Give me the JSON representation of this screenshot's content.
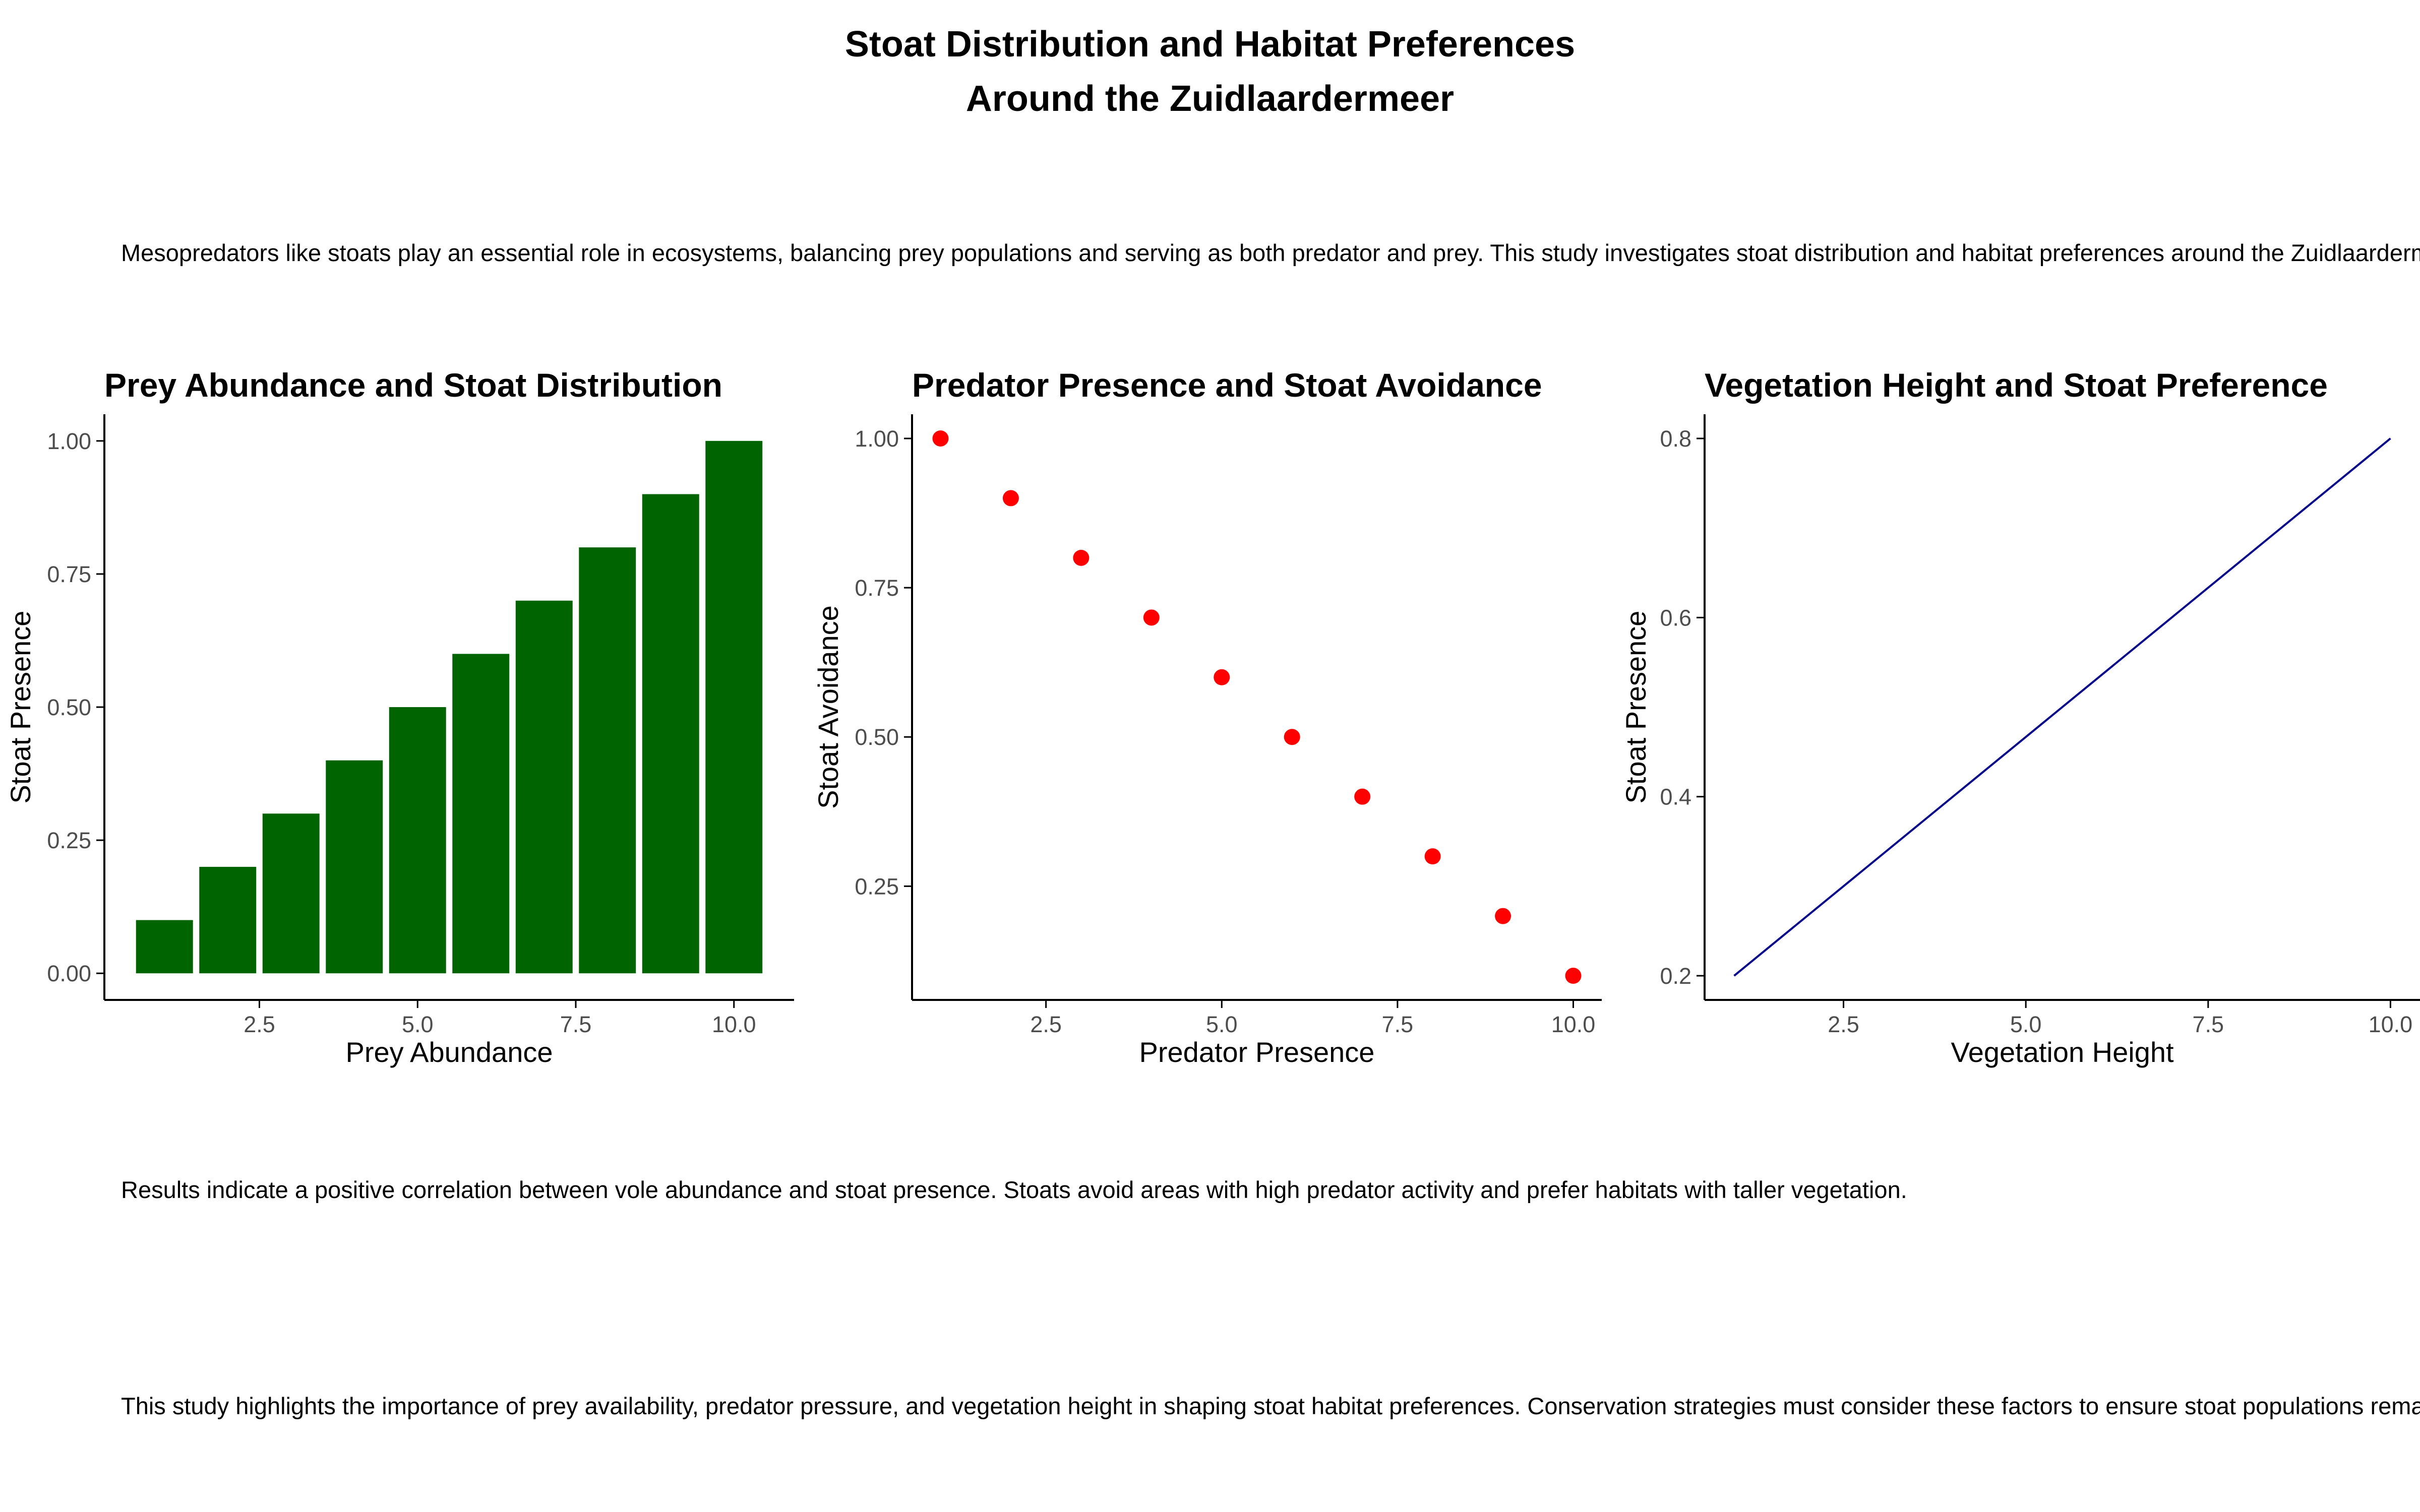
{
  "page": {
    "title_line1": "Stoat Distribution and Habitat Preferences",
    "title_line2": "Around the Zuidlaardermeer",
    "intro": "Mesopredators like stoats play an essential role in ecosystems, balancing prey populations and serving as both predator and prey. This study investigates stoat distribution and habitat preferences around the Zuidlaardermeer.",
    "results": "Results indicate a positive correlation between vole abundance and stoat presence. Stoats avoid areas with high predator activity and prefer habitats with taller vegetation.",
    "conclusion": "This study highlights the importance of prey availability, predator pressure, and vegetation height in shaping stoat habitat preferences. Conservation strategies must consider these factors to ensure stoat populations remain healthy."
  },
  "colors": {
    "bar": "#006400",
    "point": "#ff0000",
    "line": "#00008b",
    "axis": "#000000",
    "tick_label": "#4d4d4d"
  },
  "chart_data": [
    {
      "type": "bar",
      "title": "Prey Abundance and Stoat Distribution",
      "xlabel": "Prey Abundance",
      "ylabel": "Stoat Presence",
      "x": [
        1,
        2,
        3,
        4,
        5,
        6,
        7,
        8,
        9,
        10
      ],
      "values": [
        0.1,
        0.2,
        0.3,
        0.4,
        0.5,
        0.6,
        0.7,
        0.8,
        0.9,
        1.0
      ],
      "xlim": [
        0.5,
        10.5
      ],
      "ylim": [
        0,
        1
      ],
      "xticks": [
        2.5,
        5.0,
        7.5,
        10.0
      ],
      "xtick_labels": [
        "2.5",
        "5.0",
        "7.5",
        "10.0"
      ],
      "yticks": [
        0,
        0.25,
        0.5,
        0.75,
        1.0
      ],
      "ytick_labels": [
        "0.00",
        "0.25",
        "0.50",
        "0.75",
        "1.00"
      ],
      "grid": false
    },
    {
      "type": "scatter",
      "title": "Predator Presence and Stoat Avoidance",
      "xlabel": "Predator Presence",
      "ylabel": "Stoat Avoidance",
      "x": [
        1,
        2,
        3,
        4,
        5,
        6,
        7,
        8,
        9,
        10
      ],
      "values": [
        1.0,
        0.9,
        0.8,
        0.7,
        0.6,
        0.5,
        0.4,
        0.3,
        0.2,
        0.1
      ],
      "xlim": [
        1,
        10
      ],
      "ylim": [
        0.1,
        1.0
      ],
      "xticks": [
        2.5,
        5.0,
        7.5,
        10.0
      ],
      "xtick_labels": [
        "2.5",
        "5.0",
        "7.5",
        "10.0"
      ],
      "yticks": [
        0.25,
        0.5,
        0.75,
        1.0
      ],
      "ytick_labels": [
        "0.25",
        "0.50",
        "0.75",
        "1.00"
      ],
      "grid": false
    },
    {
      "type": "line",
      "title": "Vegetation Height and Stoat Preference",
      "xlabel": "Vegetation Height",
      "ylabel": "Stoat Presence",
      "x": [
        1,
        10
      ],
      "values": [
        0.2,
        0.8
      ],
      "xlim": [
        1,
        10
      ],
      "ylim": [
        0.2,
        0.8
      ],
      "xticks": [
        2.5,
        5.0,
        7.5,
        10.0
      ],
      "xtick_labels": [
        "2.5",
        "5.0",
        "7.5",
        "10.0"
      ],
      "yticks": [
        0.2,
        0.4,
        0.6,
        0.8
      ],
      "ytick_labels": [
        "0.2",
        "0.4",
        "0.6",
        "0.8"
      ],
      "grid": false
    }
  ]
}
